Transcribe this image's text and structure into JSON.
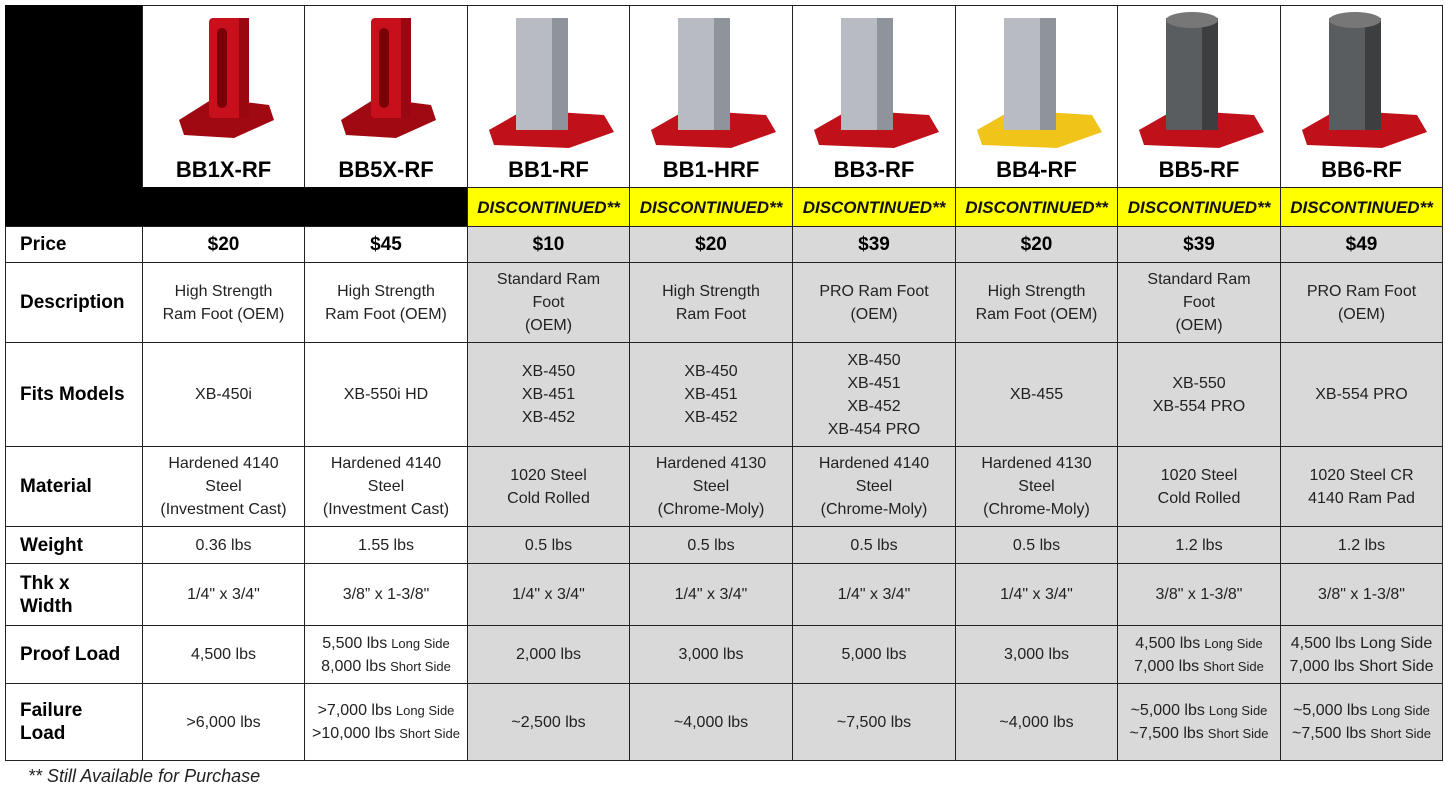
{
  "row_labels": [
    [
      "Price"
    ],
    [
      "Description"
    ],
    [
      "Fits Models"
    ],
    [
      "Material"
    ],
    [
      "Weight"
    ],
    [
      "Thk x",
      "Width"
    ],
    [
      "Proof Load"
    ],
    [
      "Failure",
      "Load"
    ]
  ],
  "products": [
    {
      "name": "BB1X-RF",
      "price": "$20",
      "description": [
        "High Strength",
        "Ram Foot (OEM)"
      ],
      "fits": [
        "XB-450i"
      ],
      "material": [
        "Hardened 4140",
        "Steel",
        "(Investment Cast)"
      ],
      "weight": [
        "0.36 lbs"
      ],
      "thk_width": [
        "1/4\"  x  3/4\""
      ],
      "proof_load": [
        "4,500 lbs"
      ],
      "failure_load": [
        ">6,000 lbs"
      ]
    },
    {
      "name": "BB5X-RF",
      "price": "$45",
      "description": [
        "High Strength",
        "Ram Foot (OEM)"
      ],
      "fits": [
        "XB-550i HD"
      ],
      "material": [
        "Hardened 4140",
        "Steel",
        "(Investment Cast)"
      ],
      "weight": [
        "1.55 lbs"
      ],
      "thk_width": [
        "3/8” x 1-3/8\""
      ],
      "proof_load": [
        [
          "5,500 lbs",
          "Long Side"
        ],
        [
          "8,000 lbs",
          "Short Side"
        ]
      ],
      "failure_load": [
        [
          ">7,000 lbs",
          "Long Side"
        ],
        [
          ">10,000 lbs",
          "Short Side"
        ]
      ]
    },
    {
      "name": "BB1-RF",
      "status": "DISCONTINUED**",
      "price": "$10",
      "description": [
        "Standard Ram",
        "Foot",
        "(OEM)"
      ],
      "fits": [
        "XB-450",
        "XB-451",
        "XB-452"
      ],
      "material": [
        "1020 Steel",
        "Cold Rolled"
      ],
      "weight": [
        "0.5 lbs"
      ],
      "thk_width": [
        "1/4\"  x  3/4\""
      ],
      "proof_load": [
        "2,000 lbs"
      ],
      "failure_load": [
        "~2,500 lbs"
      ]
    },
    {
      "name": "BB1-HRF",
      "status": "DISCONTINUED**",
      "price": "$20",
      "description": [
        "High Strength",
        "Ram Foot"
      ],
      "fits": [
        "XB-450",
        "XB-451",
        "XB-452"
      ],
      "material": [
        "Hardened 4130",
        "Steel",
        "(Chrome-Moly)"
      ],
      "weight": [
        "0.5 lbs"
      ],
      "thk_width": [
        "1/4\"  x  3/4\""
      ],
      "proof_load": [
        "3,000 lbs"
      ],
      "failure_load": [
        "~4,000 lbs"
      ]
    },
    {
      "name": "BB3-RF",
      "status": "DISCONTINUED**",
      "price": "$39",
      "description": [
        "PRO Ram Foot",
        "(OEM)"
      ],
      "fits": [
        "XB-450",
        "XB-451",
        "XB-452",
        "XB-454 PRO"
      ],
      "material": [
        "Hardened 4140",
        "Steel",
        "(Chrome-Moly)"
      ],
      "weight": [
        "0.5 lbs"
      ],
      "thk_width": [
        "1/4\"  x  3/4\""
      ],
      "proof_load": [
        "5,000 lbs"
      ],
      "failure_load": [
        "~7,500 lbs"
      ]
    },
    {
      "name": "BB4-RF",
      "status": "DISCONTINUED**",
      "price": "$20",
      "description": [
        "High Strength",
        "Ram Foot (OEM)"
      ],
      "fits": [
        "XB-455"
      ],
      "material": [
        "Hardened 4130",
        "Steel",
        "(Chrome-Moly)"
      ],
      "weight": [
        "0.5 lbs"
      ],
      "thk_width": [
        "1/4\"  x  3/4\""
      ],
      "proof_load": [
        "3,000 lbs"
      ],
      "failure_load": [
        "~4,000 lbs"
      ]
    },
    {
      "name": "BB5-RF",
      "status": "DISCONTINUED**",
      "price": "$39",
      "description": [
        "Standard Ram",
        "Foot",
        "(OEM)"
      ],
      "fits": [
        "XB-550",
        "XB-554 PRO"
      ],
      "material": [
        "1020 Steel",
        "Cold Rolled"
      ],
      "weight": [
        "1.2 lbs"
      ],
      "thk_width": [
        "3/8\"  x  1-3/8\""
      ],
      "proof_load": [
        [
          "4,500 lbs",
          "Long Side"
        ],
        [
          "7,000 lbs",
          "Short Side"
        ]
      ],
      "failure_load": [
        [
          "~5,000 lbs",
          "Long Side"
        ],
        [
          "~7,500 lbs",
          "Short Side"
        ]
      ]
    },
    {
      "name": "BB6-RF",
      "status": "DISCONTINUED**",
      "price": "$49",
      "description": [
        "PRO Ram Foot",
        "(OEM)"
      ],
      "fits": [
        "XB-554 PRO"
      ],
      "material": [
        "1020 Steel CR",
        "4140 Ram Pad"
      ],
      "weight": [
        "1.2 lbs"
      ],
      "thk_width": [
        "3/8\"  x  1-3/8\""
      ],
      "proof_load": [
        "4,500 lbs Long Side",
        "7,000 lbs Short Side"
      ],
      "failure_load": [
        [
          "~5,000 lbs",
          "Long Side"
        ],
        [
          "~7,500 lbs",
          "Short Side"
        ]
      ]
    }
  ],
  "footnote": "** Still Available for Purchase"
}
